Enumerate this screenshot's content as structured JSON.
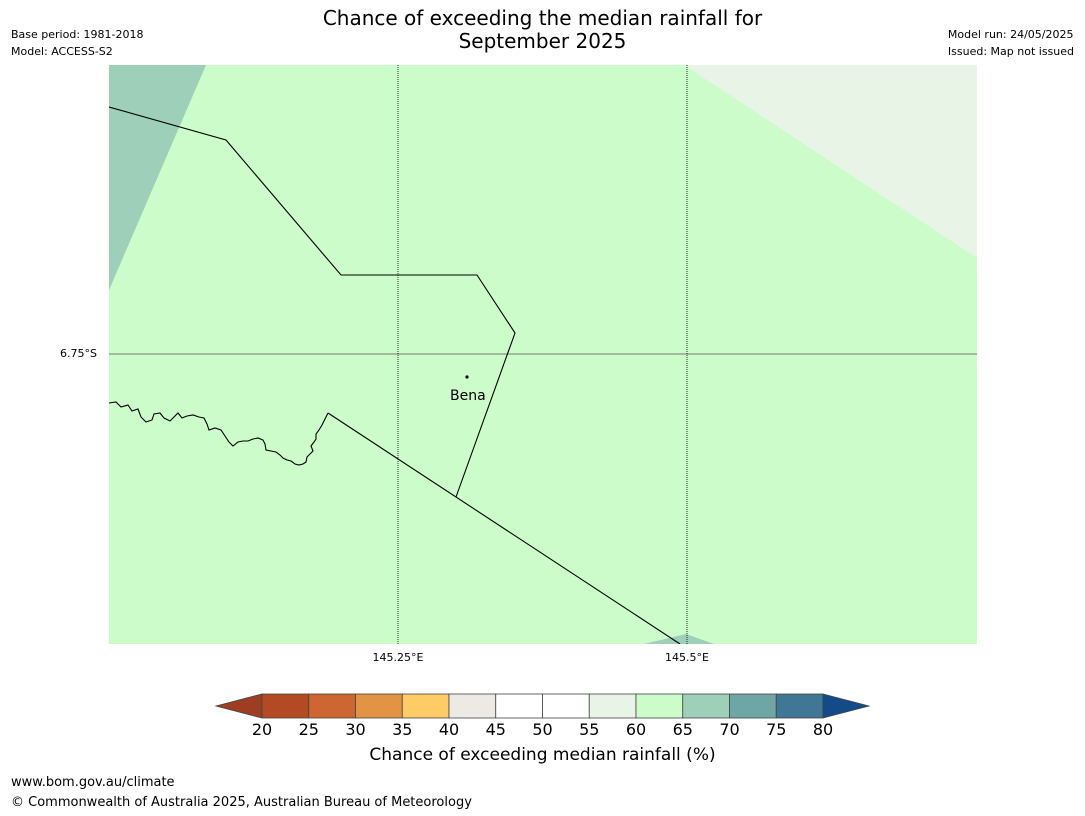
{
  "title_line1": "Chance of exceeding the median rainfall for",
  "title_line2": "September 2025",
  "base_period": "Base period: 1981-2018",
  "model": "Model: ACCESS-S2",
  "model_run": "Model run: 24/05/2025",
  "issued": "Issued: Map not issued",
  "lat_label": "6.75°S",
  "lon_labels": [
    "145.25°E",
    "145.5°E"
  ],
  "place": {
    "name": "Bena"
  },
  "colorbar": {
    "ticks": [
      "20",
      "25",
      "30",
      "35",
      "40",
      "45",
      "50",
      "55",
      "60",
      "65",
      "70",
      "75",
      "80"
    ],
    "colors": [
      "#9e3d22",
      "#b34a24",
      "#cd6631",
      "#e29444",
      "#fecb66",
      "#ede9e4",
      "#ffffff",
      "#ffffff",
      "#e8f5e6",
      "#cbfcca",
      "#9ecfb9",
      "#6ea5a5",
      "#3f7794",
      "#134b88"
    ],
    "label": "Chance of exceeding median rainfall (%)"
  },
  "map_colors": {
    "main": "#cbfcca",
    "teal": "#9ecfb9",
    "pale": "#e8f5e6"
  },
  "footer_url": "www.bom.gov.au/climate",
  "footer_copyright": "© Commonwealth of Australia 2025, Australian Bureau of Meteorology"
}
